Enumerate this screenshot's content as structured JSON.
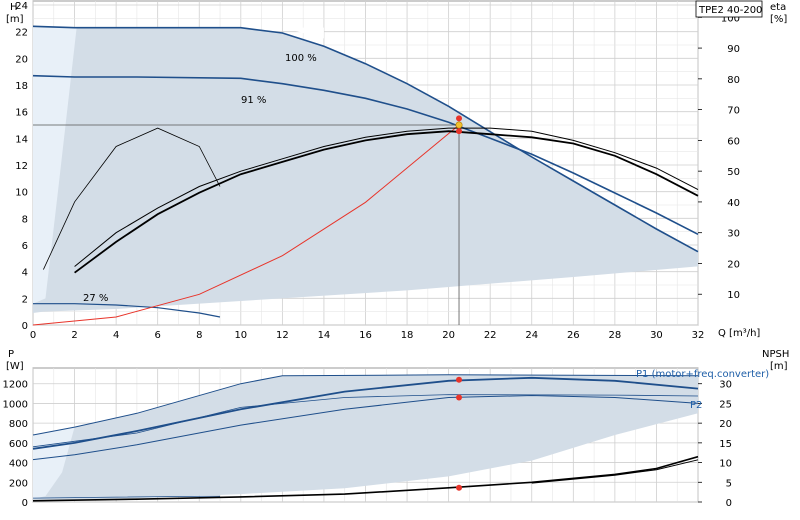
{
  "model_label": "TPE2 40-200",
  "chart_data": [
    {
      "type": "line",
      "title": "",
      "xlabel": "Q [m³/h]",
      "ylabel_left": "H [m]",
      "ylabel_right": "eta [%]",
      "xlim": [
        0,
        32
      ],
      "ylim_left": [
        0,
        24
      ],
      "ylim_right": [
        0,
        100
      ],
      "x_ticks": [
        0,
        2,
        4,
        6,
        8,
        10,
        12,
        14,
        16,
        18,
        20,
        22,
        24,
        26,
        28,
        30,
        32
      ],
      "y_left_ticks": [
        0,
        2,
        4,
        6,
        8,
        10,
        12,
        14,
        16,
        18,
        20,
        22,
        24
      ],
      "y_right_ticks": [
        10,
        20,
        30,
        40,
        50,
        60,
        70,
        80,
        90,
        100
      ],
      "grid": true,
      "duty_point": {
        "Q": 20.5,
        "H": 15
      },
      "curve_labels": [
        "100 %",
        "91 %",
        "27 %"
      ],
      "series": [
        {
          "name": "100 %",
          "axis": "left",
          "x": [
            0,
            2,
            5,
            10,
            12,
            14,
            16,
            18,
            20,
            22,
            24,
            26,
            28,
            30,
            32
          ],
          "y": [
            22.4,
            22.3,
            22.3,
            22.3,
            21.9,
            20.9,
            19.6,
            18.1,
            16.4,
            14.5,
            12.6,
            10.8,
            9.0,
            7.2,
            5.5
          ]
        },
        {
          "name": "91 %",
          "axis": "left",
          "x": [
            0,
            2,
            5,
            10,
            12,
            14,
            16,
            18,
            20,
            22,
            24,
            26,
            28,
            30,
            32
          ],
          "y": [
            18.7,
            18.6,
            18.6,
            18.5,
            18.1,
            17.6,
            17.0,
            16.2,
            15.2,
            14.0,
            12.8,
            11.4,
            9.9,
            8.4,
            6.8
          ]
        },
        {
          "name": "27 %",
          "axis": "left",
          "x": [
            0,
            2,
            4,
            6,
            8,
            9
          ],
          "y": [
            1.6,
            1.6,
            1.5,
            1.3,
            0.9,
            0.6
          ]
        },
        {
          "name": "System curve",
          "axis": "left",
          "x": [
            0,
            4,
            8,
            12,
            16,
            20.5
          ],
          "y": [
            0,
            0.6,
            2.3,
            5.2,
            9.2,
            15.0
          ]
        },
        {
          "name": "eta 100 %",
          "axis": "right",
          "x": [
            2,
            4,
            6,
            8,
            10,
            12,
            14,
            16,
            18,
            20,
            22,
            24,
            26,
            28,
            30,
            32
          ],
          "y": [
            17,
            27,
            36,
            43,
            49,
            53,
            57,
            60,
            62,
            63,
            62,
            61,
            59,
            55,
            49,
            42
          ]
        },
        {
          "name": "eta 91 %",
          "axis": "right",
          "x": [
            2,
            4,
            6,
            8,
            10,
            12,
            14,
            16,
            18,
            20,
            22,
            24,
            26,
            28,
            30,
            32
          ],
          "y": [
            19,
            30,
            38,
            45,
            50,
            54,
            58,
            61,
            63,
            64,
            64,
            63,
            60,
            56,
            51,
            44
          ]
        },
        {
          "name": "eta 27 %",
          "axis": "right",
          "x": [
            0.5,
            2,
            4,
            6,
            8,
            9
          ],
          "y": [
            18,
            40,
            58,
            64,
            58,
            45
          ]
        }
      ]
    },
    {
      "type": "line",
      "title": "",
      "xlabel": "",
      "ylabel_left": "P [W]",
      "ylabel_right": "NPSH [m]",
      "xlim": [
        0,
        32
      ],
      "ylim_left": [
        0,
        1400
      ],
      "ylim_right": [
        0,
        35
      ],
      "y_left_ticks": [
        0,
        200,
        400,
        600,
        800,
        1000,
        1200
      ],
      "y_right_ticks": [
        0,
        5,
        10,
        15,
        20,
        25,
        30
      ],
      "grid": true,
      "curve_labels": [
        "P1 (motor+freq.converter)",
        "P2"
      ],
      "series": [
        {
          "name": "P1 (motor+freq.converter)",
          "axis": "left",
          "x": [
            0,
            2,
            5,
            10,
            15,
            20,
            24,
            28,
            32
          ],
          "y": [
            540,
            600,
            720,
            940,
            1120,
            1230,
            1260,
            1230,
            1150
          ]
        },
        {
          "name": "P2",
          "axis": "left",
          "x": [
            0,
            2,
            5,
            10,
            15,
            20,
            24,
            28,
            32
          ],
          "y": [
            430,
            480,
            580,
            780,
            940,
            1060,
            1080,
            1060,
            1000
          ]
        },
        {
          "name": "NPSH",
          "axis": "right",
          "x": [
            0,
            5,
            10,
            15,
            20,
            24,
            28,
            30,
            32
          ],
          "y": [
            0.3,
            0.7,
            1.3,
            2.0,
            3.6,
            5.0,
            7.0,
            8.5,
            11.5
          ]
        }
      ]
    }
  ]
}
